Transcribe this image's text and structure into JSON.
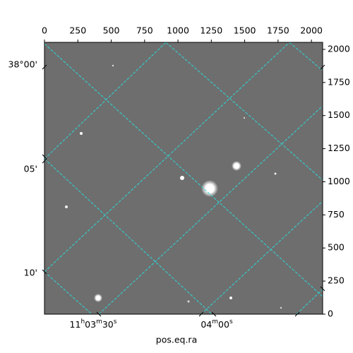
{
  "chart_data": {
    "type": "image",
    "xlabel": "pos.eq.ra",
    "xlim": [
      0,
      2084
    ],
    "xticks": [
      0,
      250,
      500,
      750,
      1000,
      1250,
      1500,
      1750,
      2000
    ],
    "ylim": [
      0,
      2053
    ],
    "yticks": [
      0,
      250,
      500,
      750,
      1000,
      1250,
      1500,
      1750,
      2000
    ],
    "dec_ticks": [
      "38°00'",
      "05'",
      "10'"
    ],
    "ra_ticks": [
      [
        "11",
        "h",
        "03",
        "m",
        "30",
        "s"
      ],
      [
        "04",
        "m",
        "00",
        "s"
      ]
    ],
    "grid_color": "#2fd6d6"
  }
}
